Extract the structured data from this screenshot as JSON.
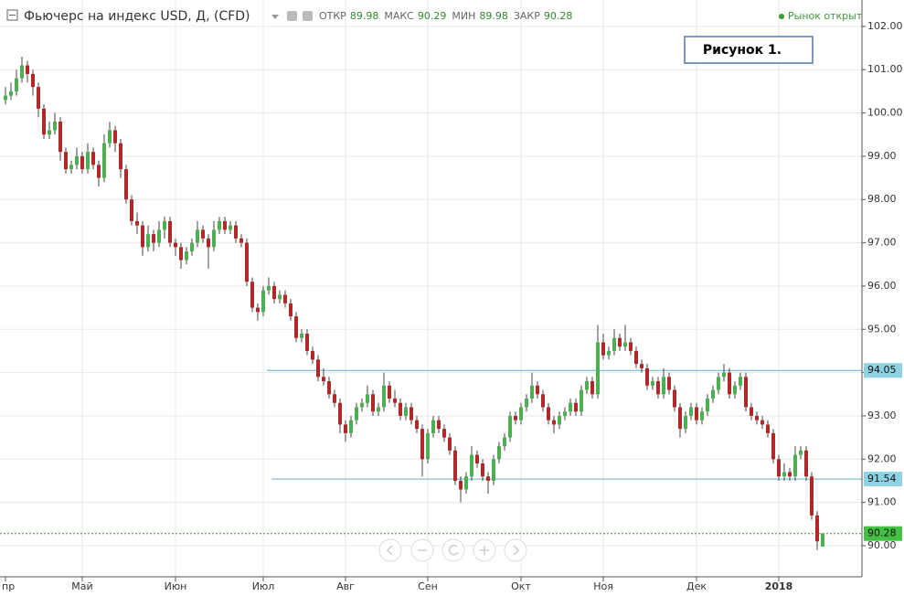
{
  "chart_data": {
    "type": "candlestick",
    "title": "Фьючерс на индекс USD, Д, (CFD)",
    "header": {
      "open_label": "ОТКР",
      "open": 89.98,
      "high_label": "МАКС",
      "high": 90.29,
      "low_label": "МИН",
      "low": 89.98,
      "close_label": "ЗАКР",
      "close": 90.28
    },
    "status": "Рынок открыт",
    "annotation": "Рисунок 1.",
    "up_color": "#4caf50",
    "down_color": "#b22828",
    "wick_color": "#444444",
    "grid": true,
    "ylim": [
      89.26,
      102.61
    ],
    "yticks": [
      {
        "value": 90,
        "label": "90.00"
      },
      {
        "value": 91,
        "label": "91.00"
      },
      {
        "value": 92,
        "label": "92.00"
      },
      {
        "value": 93,
        "label": "93.00"
      },
      {
        "value": 94,
        "label": "94.00"
      },
      {
        "value": 95,
        "label": "95.00"
      },
      {
        "value": 96,
        "label": "96.00"
      },
      {
        "value": 97,
        "label": "97.00"
      },
      {
        "value": 98,
        "label": "98.00"
      },
      {
        "value": 99,
        "label": "99.00"
      },
      {
        "value": 100,
        "label": "100.00"
      },
      {
        "value": 101,
        "label": "101.00"
      },
      {
        "value": 102,
        "label": "102.00"
      }
    ],
    "hlines": [
      {
        "value": 94.05,
        "color": "#5fb3c8",
        "label_color": "#8dd3e3"
      },
      {
        "value": 91.54,
        "color": "#5fb3c8",
        "label_color": "#8dd3e3"
      },
      {
        "value": 90.28,
        "color": "#2e9e2e",
        "label_color": "#43c143",
        "dashed": true
      }
    ],
    "categories": [
      "пр",
      null,
      null,
      null,
      null,
      null,
      null,
      null,
      null,
      null,
      null,
      null,
      null,
      null,
      "Май",
      null,
      null,
      null,
      null,
      null,
      null,
      null,
      null,
      null,
      null,
      null,
      null,
      null,
      null,
      null,
      null,
      "Июн",
      null,
      null,
      null,
      null,
      null,
      null,
      null,
      null,
      null,
      null,
      null,
      null,
      null,
      null,
      null,
      "Июл",
      null,
      null,
      null,
      null,
      null,
      null,
      null,
      null,
      null,
      null,
      null,
      null,
      null,
      null,
      "Авг",
      null,
      null,
      null,
      null,
      null,
      null,
      null,
      null,
      null,
      null,
      null,
      null,
      null,
      null,
      "Сен",
      null,
      null,
      null,
      null,
      null,
      null,
      null,
      null,
      null,
      null,
      null,
      null,
      null,
      null,
      null,
      null,
      "Окт",
      null,
      null,
      null,
      null,
      null,
      null,
      null,
      null,
      null,
      null,
      null,
      null,
      null,
      null,
      "Ноя",
      null,
      null,
      null,
      null,
      null,
      null,
      null,
      null,
      null,
      null,
      null,
      null,
      null,
      null,
      null,
      null,
      "Дек",
      null,
      null,
      null,
      null,
      null,
      null,
      null,
      null,
      null,
      null,
      null,
      null,
      null,
      null,
      "2018",
      null,
      null,
      null,
      null,
      null,
      null,
      null,
      null
    ],
    "ohlc": [
      [
        100.3,
        100.6,
        100.2,
        100.4
      ],
      [
        100.4,
        100.7,
        100.3,
        100.5
      ],
      [
        100.5,
        101.0,
        100.4,
        100.8
      ],
      [
        100.8,
        101.3,
        100.7,
        101.1
      ],
      [
        101.1,
        101.2,
        100.7,
        100.9
      ],
      [
        100.9,
        101.0,
        100.4,
        100.6
      ],
      [
        100.6,
        100.7,
        99.9,
        100.1
      ],
      [
        100.1,
        100.2,
        99.4,
        99.5
      ],
      [
        99.5,
        99.8,
        99.4,
        99.6
      ],
      [
        99.6,
        100.0,
        99.5,
        99.8
      ],
      [
        99.8,
        99.9,
        98.9,
        99.1
      ],
      [
        99.1,
        99.2,
        98.6,
        98.7
      ],
      [
        98.7,
        98.9,
        98.6,
        98.8
      ],
      [
        98.8,
        99.2,
        98.7,
        99.0
      ],
      [
        99.0,
        99.1,
        98.6,
        98.7
      ],
      [
        98.7,
        99.3,
        98.6,
        99.1
      ],
      [
        99.1,
        99.2,
        98.7,
        98.8
      ],
      [
        98.8,
        98.9,
        98.3,
        98.5
      ],
      [
        98.5,
        99.5,
        98.4,
        99.3
      ],
      [
        99.3,
        99.8,
        99.2,
        99.6
      ],
      [
        99.6,
        99.7,
        99.1,
        99.3
      ],
      [
        99.3,
        99.4,
        98.5,
        98.7
      ],
      [
        98.7,
        98.8,
        97.9,
        98.0
      ],
      [
        98.0,
        98.1,
        97.4,
        97.5
      ],
      [
        97.5,
        97.7,
        97.2,
        97.4
      ],
      [
        97.4,
        97.5,
        96.7,
        96.9
      ],
      [
        96.9,
        97.4,
        96.8,
        97.2
      ],
      [
        97.2,
        97.3,
        96.8,
        97.0
      ],
      [
        97.0,
        97.5,
        96.9,
        97.3
      ],
      [
        97.3,
        97.6,
        97.1,
        97.5
      ],
      [
        97.5,
        97.6,
        96.9,
        97.0
      ],
      [
        97.0,
        97.1,
        96.7,
        96.9
      ],
      [
        96.9,
        97.0,
        96.4,
        96.6
      ],
      [
        96.6,
        96.9,
        96.5,
        96.8
      ],
      [
        96.8,
        97.1,
        96.7,
        97.0
      ],
      [
        97.0,
        97.5,
        96.9,
        97.3
      ],
      [
        97.3,
        97.4,
        97.0,
        97.1
      ],
      [
        97.1,
        97.2,
        96.4,
        96.9
      ],
      [
        96.9,
        97.5,
        96.8,
        97.3
      ],
      [
        97.3,
        97.6,
        97.2,
        97.5
      ],
      [
        97.5,
        97.6,
        97.2,
        97.3
      ],
      [
        97.3,
        97.5,
        97.2,
        97.4
      ],
      [
        97.4,
        97.5,
        97.0,
        97.1
      ],
      [
        97.1,
        97.2,
        96.9,
        97.0
      ],
      [
        97.0,
        97.1,
        96.0,
        96.1
      ],
      [
        96.1,
        96.2,
        95.4,
        95.5
      ],
      [
        95.5,
        95.6,
        95.2,
        95.4
      ],
      [
        95.4,
        96.0,
        95.3,
        95.9
      ],
      [
        95.9,
        96.2,
        95.8,
        96.0
      ],
      [
        96.0,
        96.1,
        95.6,
        95.7
      ],
      [
        95.7,
        95.9,
        95.6,
        95.8
      ],
      [
        95.8,
        95.9,
        95.5,
        95.6
      ],
      [
        95.6,
        95.7,
        95.2,
        95.3
      ],
      [
        95.3,
        95.4,
        94.7,
        94.8
      ],
      [
        94.8,
        95.0,
        94.7,
        94.9
      ],
      [
        94.9,
        95.0,
        94.4,
        94.5
      ],
      [
        94.5,
        94.6,
        94.2,
        94.3
      ],
      [
        94.3,
        94.4,
        93.8,
        93.9
      ],
      [
        93.9,
        94.1,
        93.7,
        93.8
      ],
      [
        93.8,
        93.9,
        93.4,
        93.5
      ],
      [
        93.5,
        93.6,
        93.2,
        93.3
      ],
      [
        93.3,
        93.4,
        92.6,
        92.8
      ],
      [
        92.8,
        92.9,
        92.4,
        92.6
      ],
      [
        92.6,
        93.0,
        92.5,
        92.9
      ],
      [
        92.9,
        93.3,
        92.8,
        93.2
      ],
      [
        93.2,
        93.4,
        93.1,
        93.3
      ],
      [
        93.3,
        93.7,
        93.2,
        93.5
      ],
      [
        93.5,
        93.6,
        93.0,
        93.1
      ],
      [
        93.1,
        93.3,
        93.0,
        93.2
      ],
      [
        93.2,
        94.0,
        93.1,
        93.7
      ],
      [
        93.7,
        93.8,
        93.3,
        93.4
      ],
      [
        93.4,
        93.6,
        93.2,
        93.3
      ],
      [
        93.3,
        93.4,
        92.9,
        93.0
      ],
      [
        93.0,
        93.3,
        92.9,
        93.2
      ],
      [
        93.2,
        93.3,
        92.8,
        92.9
      ],
      [
        92.9,
        93.0,
        92.6,
        92.7
      ],
      [
        92.7,
        92.8,
        91.6,
        92.0
      ],
      [
        92.0,
        92.7,
        91.9,
        92.6
      ],
      [
        92.6,
        93.0,
        92.5,
        92.9
      ],
      [
        92.9,
        93.0,
        92.6,
        92.7
      ],
      [
        92.7,
        92.8,
        92.4,
        92.5
      ],
      [
        92.5,
        92.6,
        92.1,
        92.2
      ],
      [
        92.2,
        92.3,
        91.4,
        91.5
      ],
      [
        91.5,
        91.6,
        91.0,
        91.3
      ],
      [
        91.3,
        91.7,
        91.2,
        91.6
      ],
      [
        91.6,
        92.3,
        91.5,
        92.1
      ],
      [
        92.1,
        92.2,
        91.8,
        91.9
      ],
      [
        91.9,
        92.0,
        91.5,
        91.6
      ],
      [
        91.6,
        91.7,
        91.2,
        91.5
      ],
      [
        91.5,
        92.1,
        91.4,
        92.0
      ],
      [
        92.0,
        92.4,
        91.9,
        92.3
      ],
      [
        92.3,
        92.6,
        92.2,
        92.5
      ],
      [
        92.5,
        93.1,
        92.4,
        93.0
      ],
      [
        93.0,
        93.1,
        92.8,
        92.9
      ],
      [
        92.9,
        93.3,
        92.8,
        93.2
      ],
      [
        93.2,
        93.5,
        93.1,
        93.4
      ],
      [
        93.4,
        94.0,
        93.3,
        93.7
      ],
      [
        93.7,
        93.8,
        93.4,
        93.5
      ],
      [
        93.5,
        93.6,
        93.1,
        93.2
      ],
      [
        93.2,
        93.3,
        92.8,
        92.9
      ],
      [
        92.9,
        93.0,
        92.6,
        92.8
      ],
      [
        92.8,
        93.1,
        92.7,
        93.0
      ],
      [
        93.0,
        93.2,
        92.9,
        93.1
      ],
      [
        93.1,
        93.4,
        93.0,
        93.3
      ],
      [
        93.3,
        93.4,
        93.0,
        93.1
      ],
      [
        93.1,
        93.7,
        93.0,
        93.6
      ],
      [
        93.6,
        93.9,
        93.5,
        93.8
      ],
      [
        93.8,
        93.9,
        93.4,
        93.5
      ],
      [
        93.5,
        95.1,
        93.4,
        94.7
      ],
      [
        94.7,
        94.9,
        94.3,
        94.4
      ],
      [
        94.4,
        94.6,
        94.3,
        94.5
      ],
      [
        94.5,
        95.0,
        94.4,
        94.8
      ],
      [
        94.8,
        94.9,
        94.5,
        94.6
      ],
      [
        94.6,
        95.1,
        94.5,
        94.7
      ],
      [
        94.7,
        94.8,
        94.4,
        94.5
      ],
      [
        94.5,
        94.6,
        94.1,
        94.2
      ],
      [
        94.2,
        94.3,
        94.0,
        94.1
      ],
      [
        94.1,
        94.2,
        93.6,
        93.7
      ],
      [
        93.7,
        93.9,
        93.6,
        93.8
      ],
      [
        93.8,
        93.9,
        93.4,
        93.5
      ],
      [
        93.5,
        94.1,
        93.4,
        93.9
      ],
      [
        93.9,
        94.0,
        93.5,
        93.6
      ],
      [
        93.6,
        93.7,
        93.1,
        93.2
      ],
      [
        93.2,
        93.3,
        92.5,
        92.7
      ],
      [
        92.7,
        93.1,
        92.6,
        93.0
      ],
      [
        93.0,
        93.3,
        92.9,
        93.2
      ],
      [
        93.2,
        93.3,
        92.8,
        92.9
      ],
      [
        92.9,
        93.2,
        92.8,
        93.1
      ],
      [
        93.1,
        93.5,
        93.0,
        93.4
      ],
      [
        93.4,
        93.7,
        93.3,
        93.6
      ],
      [
        93.6,
        94.0,
        93.5,
        93.9
      ],
      [
        93.9,
        94.2,
        93.8,
        94.0
      ],
      [
        94.0,
        94.1,
        93.4,
        93.5
      ],
      [
        93.5,
        93.8,
        93.4,
        93.7
      ],
      [
        93.7,
        94.0,
        93.6,
        93.9
      ],
      [
        93.9,
        94.0,
        93.1,
        93.2
      ],
      [
        93.2,
        93.3,
        92.9,
        93.0
      ],
      [
        93.0,
        93.1,
        92.8,
        92.9
      ],
      [
        92.9,
        93.0,
        92.7,
        92.8
      ],
      [
        92.8,
        92.9,
        92.5,
        92.6
      ],
      [
        92.6,
        92.7,
        91.9,
        92.0
      ],
      [
        92.0,
        92.1,
        91.5,
        91.6
      ],
      [
        91.6,
        91.9,
        91.5,
        91.7
      ],
      [
        91.7,
        91.8,
        91.5,
        91.6
      ],
      [
        91.6,
        92.3,
        91.5,
        92.1
      ],
      [
        92.1,
        92.3,
        92.0,
        92.2
      ],
      [
        92.2,
        92.3,
        91.5,
        91.6
      ],
      [
        91.6,
        91.7,
        90.6,
        90.7
      ],
      [
        90.7,
        90.8,
        89.9,
        90.1
      ],
      [
        89.98,
        90.29,
        89.98,
        90.28
      ]
    ]
  }
}
